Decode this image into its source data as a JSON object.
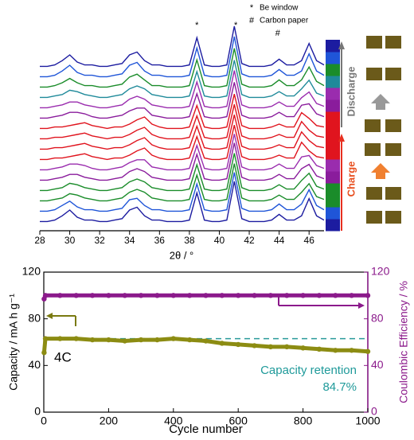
{
  "chart_data": [
    {
      "type": "line",
      "xlabel": "2θ / °",
      "xlim": [
        28,
        47
      ],
      "xticks": [
        28,
        30,
        32,
        34,
        36,
        38,
        40,
        42,
        44,
        46
      ],
      "x": [
        28,
        28.5,
        29,
        29.5,
        30,
        30.5,
        31,
        31.5,
        32,
        32.5,
        33,
        33.5,
        34,
        34.5,
        35,
        35.5,
        36,
        36.5,
        37,
        37.5,
        38,
        38.5,
        39,
        39.5,
        40,
        40.5,
        41,
        41.5,
        42,
        42.5,
        43,
        43.5,
        44,
        44.5,
        45,
        45.5,
        46,
        46.5,
        47
      ],
      "series": [
        {
          "color": "#1c1ca0",
          "values": [
            2,
            2,
            3,
            6,
            10,
            5,
            3,
            3,
            2,
            2,
            3,
            4,
            10,
            12,
            6,
            3,
            3,
            2,
            2,
            2,
            3,
            22,
            3,
            2,
            2,
            3,
            30,
            4,
            2,
            2,
            2,
            3,
            7,
            3,
            3,
            6,
            18,
            6,
            3
          ]
        },
        {
          "color": "#1f55d8",
          "values": [
            2,
            2,
            3,
            6,
            9,
            5,
            3,
            3,
            2,
            2,
            3,
            4,
            10,
            11,
            6,
            3,
            3,
            2,
            2,
            2,
            3,
            21,
            3,
            2,
            2,
            3,
            29,
            4,
            2,
            2,
            2,
            3,
            7,
            3,
            3,
            7,
            17,
            6,
            3
          ]
        },
        {
          "color": "#1a8c2a",
          "values": [
            2,
            2,
            3,
            4,
            7,
            6,
            4,
            3,
            2,
            2,
            3,
            4,
            8,
            10,
            8,
            4,
            3,
            2,
            2,
            2,
            3,
            20,
            3,
            2,
            2,
            3,
            28,
            4,
            2,
            2,
            2,
            3,
            6,
            3,
            3,
            8,
            14,
            5,
            3
          ]
        },
        {
          "color": "#1a8c2a",
          "values": [
            2,
            2,
            3,
            4,
            7,
            6,
            4,
            3,
            2,
            2,
            3,
            4,
            8,
            10,
            8,
            4,
            3,
            2,
            2,
            2,
            3,
            20,
            3,
            2,
            2,
            3,
            28,
            4,
            2,
            2,
            2,
            3,
            6,
            3,
            3,
            9,
            14,
            5,
            3
          ]
        },
        {
          "color": "#8a1c9c",
          "values": [
            2,
            2,
            3,
            4,
            6,
            6,
            4,
            3,
            2,
            2,
            3,
            4,
            8,
            10,
            8,
            4,
            3,
            2,
            2,
            2,
            3,
            20,
            3,
            2,
            2,
            3,
            28,
            4,
            2,
            2,
            2,
            3,
            6,
            3,
            3,
            10,
            13,
            5,
            3
          ]
        },
        {
          "color": "#9a2cae",
          "values": [
            2,
            2,
            3,
            4,
            6,
            6,
            5,
            3,
            2,
            2,
            3,
            4,
            7,
            9,
            9,
            4,
            3,
            2,
            2,
            2,
            3,
            19,
            3,
            2,
            2,
            3,
            27,
            4,
            2,
            2,
            2,
            3,
            6,
            3,
            3,
            11,
            12,
            5,
            3
          ]
        },
        {
          "color": "#e0141e",
          "values": [
            2,
            2,
            3,
            3,
            4,
            5,
            6,
            4,
            3,
            2,
            3,
            3,
            5,
            8,
            10,
            5,
            3,
            2,
            2,
            2,
            3,
            18,
            3,
            2,
            2,
            3,
            26,
            4,
            2,
            2,
            2,
            3,
            5,
            3,
            3,
            14,
            8,
            4,
            3
          ]
        },
        {
          "color": "#e0141e",
          "values": [
            2,
            2,
            3,
            3,
            4,
            5,
            6,
            4,
            3,
            2,
            3,
            3,
            5,
            8,
            10,
            5,
            3,
            2,
            2,
            2,
            3,
            18,
            3,
            2,
            2,
            3,
            26,
            4,
            2,
            2,
            2,
            3,
            5,
            3,
            3,
            14,
            8,
            4,
            3
          ]
        },
        {
          "color": "#e0141e",
          "values": [
            2,
            2,
            3,
            3,
            4,
            5,
            6,
            4,
            3,
            2,
            3,
            3,
            5,
            8,
            10,
            5,
            3,
            2,
            2,
            2,
            3,
            18,
            3,
            2,
            2,
            3,
            26,
            4,
            2,
            2,
            2,
            3,
            5,
            3,
            3,
            14,
            8,
            4,
            3
          ]
        },
        {
          "color": "#e0141e",
          "values": [
            2,
            2,
            3,
            3,
            4,
            5,
            6,
            4,
            3,
            2,
            3,
            3,
            5,
            8,
            10,
            5,
            3,
            2,
            2,
            2,
            3,
            18,
            3,
            2,
            2,
            3,
            26,
            4,
            2,
            2,
            2,
            3,
            5,
            3,
            3,
            13,
            9,
            4,
            3
          ]
        },
        {
          "color": "#8a1c9c",
          "values": [
            2,
            2,
            3,
            4,
            6,
            6,
            5,
            3,
            2,
            2,
            3,
            4,
            7,
            9,
            9,
            4,
            3,
            2,
            2,
            2,
            3,
            19,
            3,
            2,
            2,
            3,
            27,
            4,
            2,
            2,
            2,
            3,
            6,
            3,
            3,
            11,
            12,
            5,
            3
          ]
        },
        {
          "color": "#9a2cae",
          "values": [
            2,
            2,
            3,
            4,
            6,
            6,
            4,
            3,
            2,
            2,
            3,
            4,
            8,
            10,
            8,
            4,
            3,
            2,
            2,
            2,
            3,
            20,
            3,
            2,
            2,
            3,
            28,
            4,
            2,
            2,
            2,
            3,
            6,
            3,
            3,
            9,
            13,
            5,
            3
          ]
        },
        {
          "color": "#1f8a9a",
          "values": [
            2,
            2,
            3,
            4,
            7,
            6,
            4,
            3,
            2,
            2,
            3,
            4,
            8,
            10,
            8,
            4,
            3,
            2,
            2,
            2,
            3,
            20,
            3,
            2,
            2,
            3,
            28,
            4,
            2,
            2,
            2,
            3,
            6,
            3,
            3,
            8,
            14,
            5,
            3
          ]
        },
        {
          "color": "#1a8c2a",
          "values": [
            2,
            2,
            3,
            5,
            8,
            5,
            3,
            3,
            2,
            2,
            3,
            4,
            9,
            11,
            7,
            3,
            3,
            2,
            2,
            2,
            3,
            21,
            3,
            2,
            2,
            3,
            29,
            4,
            2,
            2,
            2,
            3,
            7,
            3,
            3,
            7,
            16,
            6,
            3
          ]
        },
        {
          "color": "#1f55d8",
          "values": [
            2,
            2,
            3,
            6,
            10,
            5,
            3,
            3,
            2,
            2,
            3,
            4,
            10,
            12,
            6,
            3,
            3,
            2,
            2,
            2,
            3,
            22,
            3,
            2,
            2,
            3,
            30,
            4,
            2,
            2,
            2,
            3,
            7,
            3,
            3,
            6,
            18,
            6,
            3
          ]
        },
        {
          "color": "#1c1ca0",
          "values": [
            2,
            2,
            3,
            6,
            10,
            5,
            3,
            3,
            2,
            2,
            3,
            4,
            10,
            12,
            6,
            3,
            3,
            2,
            2,
            2,
            3,
            22,
            3,
            2,
            2,
            3,
            30,
            4,
            2,
            2,
            2,
            3,
            7,
            3,
            3,
            6,
            18,
            6,
            3
          ]
        }
      ],
      "annotations": [
        {
          "text": "*",
          "x": 38.5
        },
        {
          "text": "*",
          "x": 41.1
        },
        {
          "text": "#",
          "x": 43.9
        }
      ],
      "legend": [
        {
          "symbol": "*",
          "text": "Be window"
        },
        {
          "symbol": "#",
          "text": "Carbon paper"
        }
      ],
      "side_labels": {
        "up": "Charge",
        "down": "Discharge"
      }
    },
    {
      "type": "scatter",
      "xlabel": "Cycle number",
      "ylabel": "Capacity / mA h g⁻¹",
      "y2label": "Coulombic Efficiency / %",
      "xlim": [
        0,
        1000
      ],
      "xticks": [
        0,
        200,
        400,
        600,
        800,
        1000
      ],
      "ylim": [
        0,
        120
      ],
      "yticks": [
        0,
        40,
        80,
        120
      ],
      "y2lim": [
        0,
        120
      ],
      "y2ticks": [
        0,
        40,
        80,
        120
      ],
      "x": [
        1,
        5,
        50,
        100,
        150,
        200,
        250,
        300,
        350,
        400,
        450,
        500,
        550,
        600,
        650,
        700,
        750,
        800,
        850,
        900,
        950,
        1000
      ],
      "series": [
        {
          "color": "#8c8c12",
          "axis": "y",
          "values": [
            51,
            63,
            63,
            63,
            62,
            62,
            61,
            62,
            62,
            63,
            62,
            61,
            59,
            58,
            57,
            56,
            56,
            55,
            54,
            53,
            53,
            52
          ]
        },
        {
          "color": "#8b1a8b",
          "axis": "y2",
          "values": [
            97,
            100,
            100,
            100,
            100,
            100,
            100,
            100,
            100,
            100,
            100,
            100,
            100,
            100,
            100,
            100,
            100,
            100,
            100,
            100,
            100,
            100
          ]
        }
      ],
      "reference_line": {
        "value": 63,
        "color": "#2a9a9a"
      },
      "annotations": [
        "4C",
        "Capacity retention",
        "84.7%"
      ]
    }
  ]
}
